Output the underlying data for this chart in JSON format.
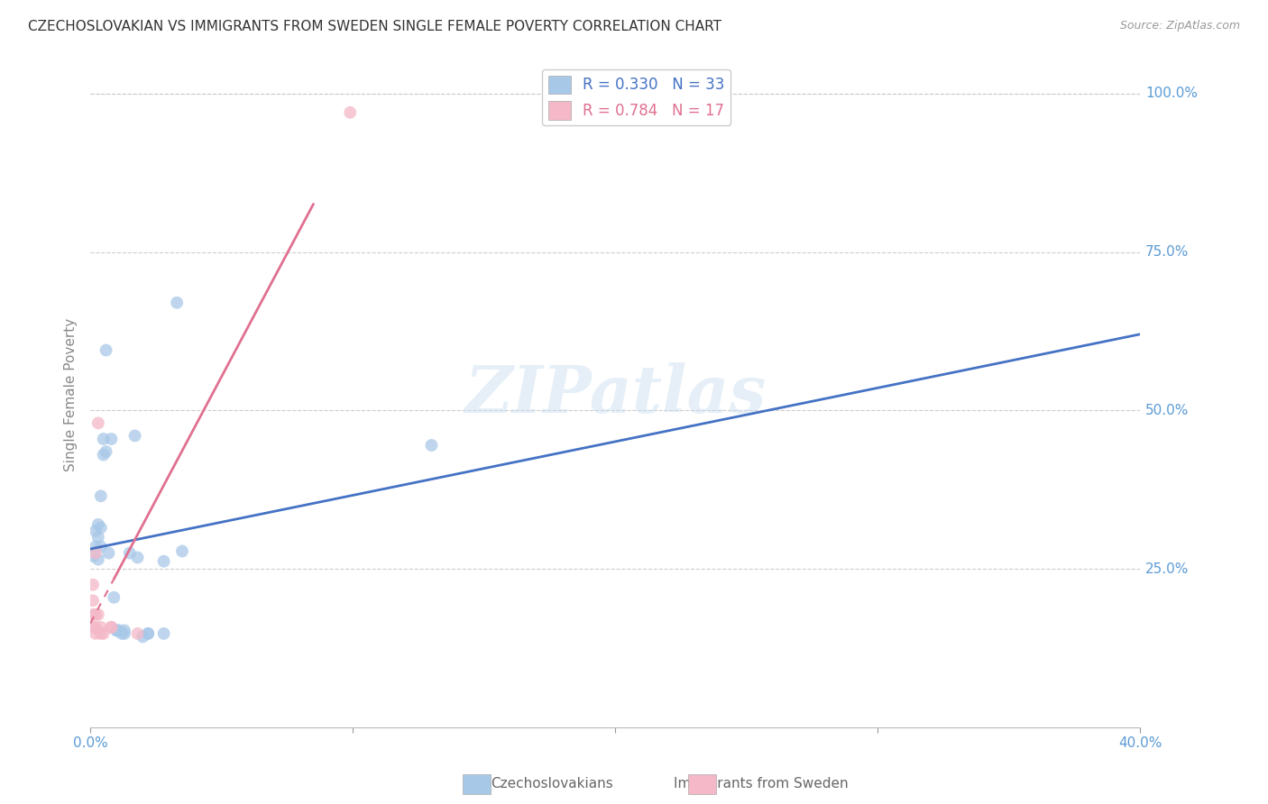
{
  "title": "CZECHOSLOVAKIAN VS IMMIGRANTS FROM SWEDEN SINGLE FEMALE POVERTY CORRELATION CHART",
  "source": "Source: ZipAtlas.com",
  "ylabel": "Single Female Poverty",
  "y_labels_right": [
    "100.0%",
    "75.0%",
    "50.0%",
    "25.0%"
  ],
  "y_ticks": [
    1.0,
    0.75,
    0.5,
    0.25
  ],
  "xlim": [
    0.0,
    0.4
  ],
  "ylim": [
    0.0,
    1.05
  ],
  "x_ticks": [
    0.0,
    0.1,
    0.2,
    0.3,
    0.4
  ],
  "x_tick_labels": [
    "0.0%",
    "",
    "",
    "",
    "40.0%"
  ],
  "legend_labels_bottom": [
    "Czechoslovakians",
    "Immigrants from Sweden"
  ],
  "watermark": "ZIPatlas",
  "blue_scatter": [
    [
      0.001,
      0.27
    ],
    [
      0.002,
      0.285
    ],
    [
      0.002,
      0.31
    ],
    [
      0.003,
      0.3
    ],
    [
      0.003,
      0.265
    ],
    [
      0.003,
      0.32
    ],
    [
      0.004,
      0.315
    ],
    [
      0.004,
      0.285
    ],
    [
      0.004,
      0.365
    ],
    [
      0.005,
      0.455
    ],
    [
      0.005,
      0.43
    ],
    [
      0.006,
      0.595
    ],
    [
      0.006,
      0.435
    ],
    [
      0.007,
      0.275
    ],
    [
      0.008,
      0.455
    ],
    [
      0.009,
      0.205
    ],
    [
      0.01,
      0.153
    ],
    [
      0.01,
      0.153
    ],
    [
      0.011,
      0.153
    ],
    [
      0.012,
      0.148
    ],
    [
      0.013,
      0.153
    ],
    [
      0.013,
      0.148
    ],
    [
      0.015,
      0.275
    ],
    [
      0.017,
      0.46
    ],
    [
      0.018,
      0.268
    ],
    [
      0.02,
      0.143
    ],
    [
      0.022,
      0.148
    ],
    [
      0.022,
      0.148
    ],
    [
      0.028,
      0.148
    ],
    [
      0.028,
      0.262
    ],
    [
      0.033,
      0.67
    ],
    [
      0.035,
      0.278
    ],
    [
      0.13,
      0.445
    ]
  ],
  "pink_scatter": [
    [
      0.001,
      0.225
    ],
    [
      0.001,
      0.2
    ],
    [
      0.001,
      0.178
    ],
    [
      0.001,
      0.158
    ],
    [
      0.002,
      0.275
    ],
    [
      0.002,
      0.178
    ],
    [
      0.002,
      0.158
    ],
    [
      0.002,
      0.148
    ],
    [
      0.003,
      0.48
    ],
    [
      0.003,
      0.178
    ],
    [
      0.004,
      0.158
    ],
    [
      0.004,
      0.148
    ],
    [
      0.005,
      0.148
    ],
    [
      0.008,
      0.158
    ],
    [
      0.008,
      0.158
    ],
    [
      0.099,
      0.97
    ],
    [
      0.018,
      0.148
    ]
  ],
  "blue_line_color": "#4472c4",
  "pink_line_color": "#e07090",
  "background_color": "#ffffff",
  "grid_color": "#cccccc",
  "axis_label_color": "#5b9bd5",
  "blue_dot_color": "#a8c8e8",
  "pink_dot_color": "#f4b8c8",
  "dot_size": 100,
  "dot_alpha": 0.75,
  "blue_R": 0.33,
  "blue_N": 33,
  "pink_R": 0.784,
  "pink_N": 17,
  "blue_line_intercept": 0.355,
  "blue_line_slope": 1.0,
  "pink_line_intercept": -0.065,
  "pink_line_slope": 10.5
}
